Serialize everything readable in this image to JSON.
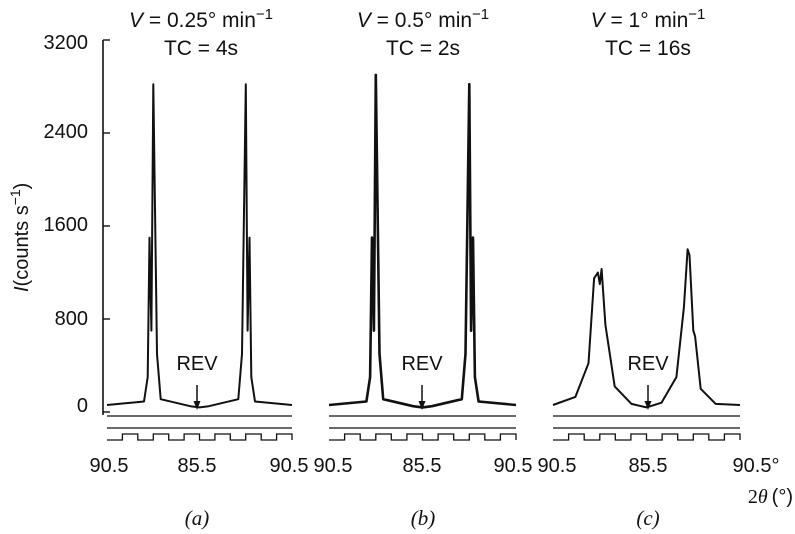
{
  "figure": {
    "xlabel_prefix": "2",
    "xlabel_symbol": "θ",
    "xlabel_unit": "(°)",
    "ylabel_symbol": "I",
    "ylabel_text": "(counts s",
    "ylabel_exp": "−1",
    "ylabel_close": ")",
    "y_ticks": [
      "3200",
      "2400",
      "1600",
      "800",
      "0"
    ]
  },
  "chart_data": [
    {
      "type": "line",
      "panel_label": "(a)",
      "title_v_var": "V",
      "title_v_rest": " = 0.25° min",
      "title_v_exp": "−1",
      "title_tc": "TC = 4s",
      "annotation": "REV",
      "x_ticks": [
        "90.5",
        "85.5",
        "90.5"
      ],
      "ylim": [
        0,
        3200
      ],
      "x": [
        90.5,
        88.5,
        88.3,
        88.2,
        88.1,
        88.0,
        87.8,
        87.6,
        86.0,
        85.5,
        85.0,
        83.4,
        83.2,
        83.0,
        82.9,
        82.8,
        82.7,
        82.5,
        80.5
      ],
      "y": [
        60,
        90,
        300,
        1500,
        700,
        2820,
        500,
        110,
        50,
        40,
        50,
        110,
        500,
        2820,
        700,
        1500,
        300,
        90,
        60
      ]
    },
    {
      "type": "line",
      "panel_label": "(b)",
      "title_v_var": "V",
      "title_v_rest": " = 0.5° min",
      "title_v_exp": "−1",
      "title_tc": "TC = 2s",
      "annotation": "REV",
      "x_ticks": [
        "90.5",
        "85.5",
        "90.5"
      ],
      "ylim": [
        0,
        3200
      ],
      "x": [
        90.5,
        88.5,
        88.3,
        88.2,
        88.1,
        88.0,
        87.8,
        87.6,
        86.0,
        85.5,
        85.0,
        83.4,
        83.2,
        83.0,
        82.9,
        82.8,
        82.7,
        82.5,
        80.5
      ],
      "y": [
        60,
        90,
        300,
        1500,
        700,
        2900,
        500,
        110,
        50,
        40,
        50,
        110,
        500,
        2820,
        700,
        1500,
        300,
        90,
        60
      ]
    },
    {
      "type": "line",
      "panel_label": "(c)",
      "title_v_var": "V",
      "title_v_rest": " = 1° min",
      "title_v_exp": "−1",
      "title_tc": "TC = 16s",
      "annotation": "REV",
      "x_ticks": [
        "90.5",
        "85.5",
        "90.5°"
      ],
      "ylim": [
        0,
        3200
      ],
      "x": [
        90.5,
        89.3,
        88.6,
        88.3,
        88.1,
        88.0,
        87.9,
        87.7,
        87.2,
        86.3,
        85.5,
        84.7,
        83.9,
        83.5,
        83.3,
        83.2,
        83.0,
        82.9,
        82.6,
        81.8,
        80.5
      ],
      "y": [
        60,
        130,
        420,
        1150,
        1200,
        1100,
        1230,
        750,
        220,
        70,
        40,
        80,
        300,
        900,
        1400,
        1350,
        700,
        650,
        200,
        70,
        60
      ]
    }
  ]
}
